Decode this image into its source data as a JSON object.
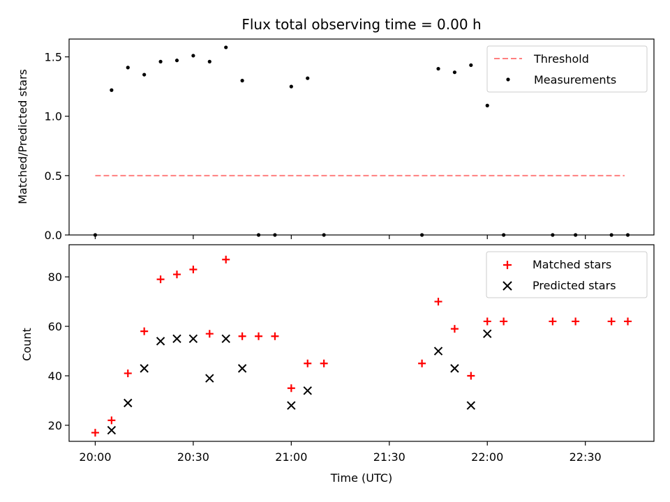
{
  "chart_data": [
    {
      "type": "scatter",
      "title": "Flux total observing time = 0.00 h",
      "ylabel": "Matched/Predicted stars",
      "xlabel": "",
      "xlim": [
        "19:52",
        "22:51"
      ],
      "ylim": [
        0,
        1.65
      ],
      "yticks": [
        0.0,
        0.5,
        1.0,
        1.5
      ],
      "ytick_labels": [
        "0.0",
        "0.5",
        "1.0",
        "1.5"
      ],
      "xticks": [
        "20:00",
        "20:30",
        "21:00",
        "21:30",
        "22:00",
        "22:30"
      ],
      "show_xtick_labels": false,
      "grid": false,
      "legend": "top-right",
      "series": [
        {
          "name": "Threshold",
          "kind": "line",
          "style": "dashed",
          "color": "#ff7f7f",
          "x": [
            "20:00",
            "22:42"
          ],
          "y": [
            0.5,
            0.5
          ]
        },
        {
          "name": "Measurements",
          "kind": "points",
          "color": "#000000",
          "x": [
            "20:00",
            "20:05",
            "20:10",
            "20:15",
            "20:20",
            "20:25",
            "20:30",
            "20:35",
            "20:40",
            "20:45",
            "20:50",
            "20:55",
            "21:00",
            "21:05",
            "21:10",
            "21:40",
            "21:45",
            "21:50",
            "21:55",
            "22:00",
            "22:05",
            "22:20",
            "22:27",
            "22:38",
            "22:43"
          ],
          "y": [
            0.0,
            1.22,
            1.41,
            1.35,
            1.46,
            1.47,
            1.51,
            1.46,
            1.58,
            1.3,
            0.0,
            0.0,
            1.25,
            1.32,
            0.0,
            0.0,
            1.4,
            1.37,
            1.43,
            1.09,
            0.0,
            0.0,
            0.0,
            0.0,
            0.0
          ]
        }
      ]
    },
    {
      "type": "scatter",
      "title": "",
      "ylabel": "Count",
      "xlabel": "Time (UTC)",
      "xlim": [
        "19:52",
        "22:51"
      ],
      "ylim": [
        13.5,
        93
      ],
      "yticks": [
        20,
        40,
        60,
        80
      ],
      "ytick_labels": [
        "20",
        "40",
        "60",
        "80"
      ],
      "xticks": [
        "20:00",
        "20:30",
        "21:00",
        "21:30",
        "22:00",
        "22:30"
      ],
      "xtick_labels": [
        "20:00",
        "20:30",
        "21:00",
        "21:30",
        "22:00",
        "22:30"
      ],
      "show_xtick_labels": true,
      "grid": false,
      "legend": "top-right",
      "series": [
        {
          "name": "Matched stars",
          "kind": "plus",
          "color": "#ff0000",
          "x": [
            "20:00",
            "20:05",
            "20:10",
            "20:15",
            "20:20",
            "20:25",
            "20:30",
            "20:35",
            "20:40",
            "20:45",
            "20:50",
            "20:55",
            "21:00",
            "21:05",
            "21:10",
            "21:40",
            "21:45",
            "21:50",
            "21:55",
            "22:00",
            "22:05",
            "22:20",
            "22:27",
            "22:38",
            "22:43"
          ],
          "y": [
            17,
            22,
            41,
            58,
            79,
            81,
            83,
            57,
            87,
            56,
            56,
            56,
            35,
            45,
            45,
            45,
            70,
            59,
            40,
            62,
            62,
            62,
            62,
            62,
            62
          ]
        },
        {
          "name": "Predicted stars",
          "kind": "cross",
          "color": "#000000",
          "x": [
            "20:05",
            "20:10",
            "20:15",
            "20:20",
            "20:25",
            "20:30",
            "20:35",
            "20:40",
            "20:45",
            "21:00",
            "21:05",
            "21:45",
            "21:50",
            "21:55",
            "22:00"
          ],
          "y": [
            18,
            29,
            43,
            54,
            55,
            55,
            39,
            55,
            43,
            28,
            34,
            50,
            43,
            28,
            57
          ]
        }
      ]
    }
  ]
}
